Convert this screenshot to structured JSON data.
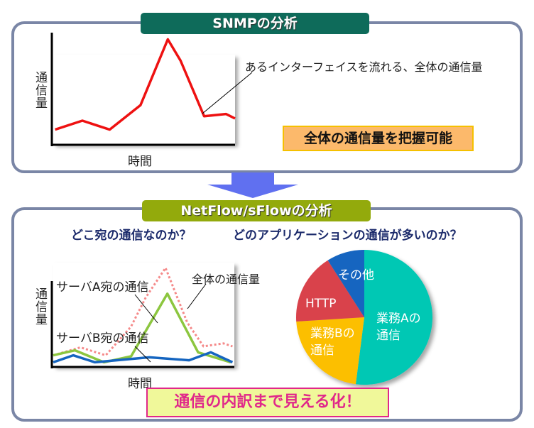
{
  "snmp": {
    "title": "SNMPの分析",
    "y_label": "通信量",
    "x_label": "時間",
    "annotation": "あるインターフェイスを流れる、全体の通信量",
    "conclusion": "全体の通信量を把握可能"
  },
  "netflow": {
    "title": "NetFlow/sFlowの分析",
    "question_left": "どこ宛の通信なのか？",
    "question_right": "どのアプリケーションの通信が多いのか？",
    "y_label": "通信量",
    "x_label": "時間",
    "label_server_a": "サーバA宛の通信",
    "label_server_b": "サーバB宛の通信",
    "label_total": "全体の通信量",
    "conclusion": "通信の内訳まで見える化！"
  },
  "chart_data": [
    {
      "type": "line",
      "title": "SNMPの分析",
      "xlabel": "時間",
      "ylabel": "通信量",
      "xlim": [
        0,
        10
      ],
      "ylim": [
        0,
        100
      ],
      "series": [
        {
          "name": "全体の通信量",
          "color": "#ee1111",
          "style": "solid",
          "x": [
            0.1,
            1.6,
            3.1,
            4.8,
            6.3,
            7.0,
            8.3,
            9.5,
            10
          ],
          "y": [
            13,
            21,
            13,
            35,
            94,
            75,
            25,
            27,
            23
          ]
        }
      ]
    },
    {
      "type": "line",
      "title": "NetFlow/sFlowの分析",
      "xlabel": "時間",
      "ylabel": "通信量",
      "xlim": [
        0,
        10
      ],
      "ylim": [
        0,
        100
      ],
      "series": [
        {
          "name": "全体の通信量",
          "color": "#f58a8a",
          "style": "dotted",
          "x": [
            0,
            1.5,
            2.9,
            4.3,
            5.1,
            6.2,
            7.4,
            8.3,
            9.4,
            9.9
          ],
          "y": [
            11,
            19,
            11,
            40,
            69,
            99,
            44,
            20,
            23,
            20
          ]
        },
        {
          "name": "サーバA宛の通信",
          "color": "#8cc63f",
          "style": "solid",
          "x": [
            0,
            1.2,
            2.8,
            4.3,
            6.3,
            8.0,
            9.8
          ],
          "y": [
            11,
            16,
            4,
            10,
            73,
            14,
            4
          ]
        },
        {
          "name": "サーバB宛の通信",
          "color": "#1565c0",
          "style": "solid",
          "x": [
            0,
            1.1,
            2.3,
            5.3,
            7.5,
            8.7,
            9.9
          ],
          "y": [
            4,
            11,
            4,
            9,
            6,
            14,
            4
          ]
        }
      ]
    },
    {
      "type": "pie",
      "labels": [
        "業務Aの通信",
        "業務Bの通信",
        "HTTP",
        "その他"
      ],
      "label_lines": [
        [
          "業務Aの",
          "通信"
        ],
        [
          "業務Bの",
          "通信"
        ],
        [
          "HTTP"
        ],
        [
          "その他"
        ]
      ],
      "values": [
        52,
        22,
        17,
        9
      ],
      "colors": [
        "#00c8b4",
        "#fcbf00",
        "#d9434b",
        "#1565c0"
      ]
    }
  ]
}
